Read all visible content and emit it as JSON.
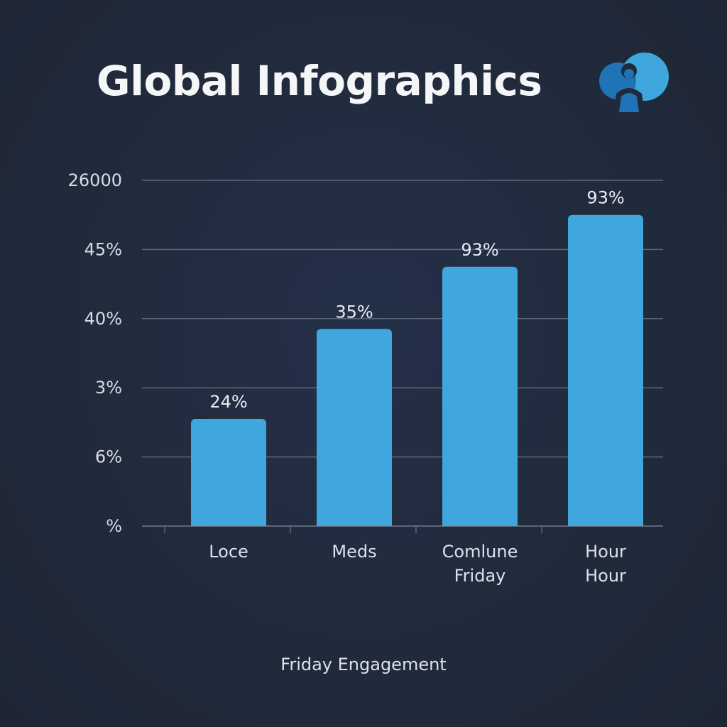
{
  "title": "Global Infographics",
  "logo_icon": "people-globe-icon",
  "colors": {
    "background": "#212a3a",
    "bar": "#3fa7dd",
    "grid": "#5d6677",
    "text": "#e6ebf2",
    "logo_light": "#3fa7dd",
    "logo_dark": "#1f74b8"
  },
  "chart_data": {
    "type": "bar",
    "title": "Global Infographics",
    "xlabel": "Friday Engagement",
    "ylabel": "",
    "y_tick_labels": [
      "%",
      "6%",
      "3%",
      "40%",
      "45%",
      "26000"
    ],
    "categories": [
      [
        "Loce"
      ],
      [
        "Meds"
      ],
      [
        "Comlune",
        "Friday"
      ],
      [
        "Hour",
        "Hour"
      ]
    ],
    "bar_levels": [
      0.31,
      0.57,
      0.75,
      0.9
    ],
    "data_labels": [
      "24%",
      "35%",
      "93%",
      "93%"
    ],
    "grid": true,
    "legend": "none"
  }
}
